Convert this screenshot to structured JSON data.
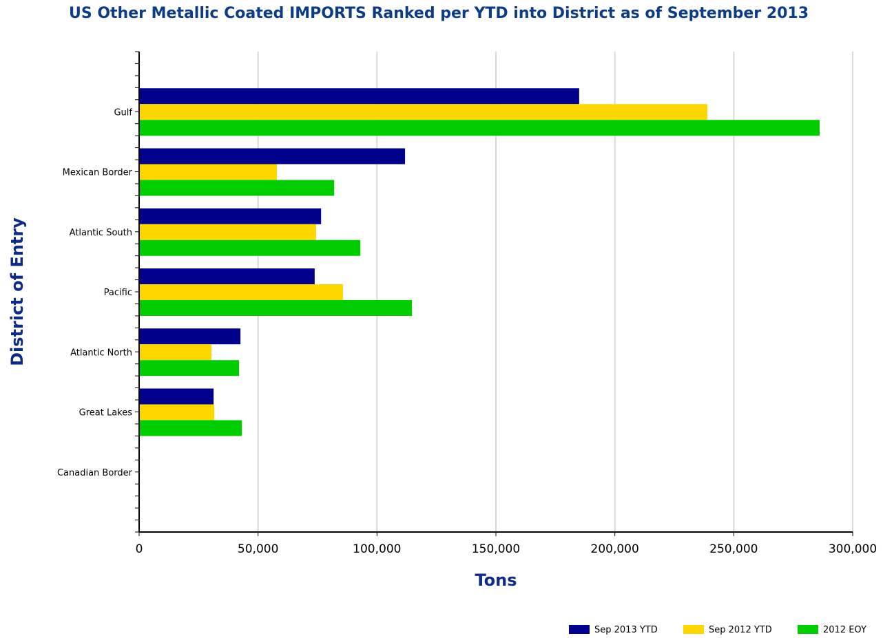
{
  "chart_data": {
    "type": "bar",
    "orientation": "horizontal",
    "title": "US Other Metallic Coated IMPORTS Ranked per YTD into District as of September 2013",
    "xlabel": "Tons",
    "ylabel": "District of Entry",
    "xlim": [
      0,
      300000
    ],
    "xticks": [
      "0",
      "50,000",
      "100,000",
      "150,000",
      "200,000",
      "250,000",
      "300,000"
    ],
    "grid": true,
    "legend_position": "bottom-right",
    "categories": [
      "Gulf",
      "Mexican Border",
      "Atlantic South",
      "Pacific",
      "Atlantic North",
      "Great Lakes",
      "Canadian Border"
    ],
    "series": [
      {
        "name": "Sep 2013 YTD",
        "color": "#00008b",
        "values": [
          185000,
          111800,
          76500,
          73800,
          42600,
          31300,
          0
        ]
      },
      {
        "name": "Sep 2012 YTD",
        "color": "#ffd700",
        "values": [
          238900,
          57900,
          74400,
          85700,
          30400,
          31600,
          0
        ]
      },
      {
        "name": "2012 EOY",
        "color": "#00cc00",
        "values": [
          286100,
          82000,
          93000,
          114700,
          42000,
          43200,
          0
        ]
      }
    ]
  }
}
